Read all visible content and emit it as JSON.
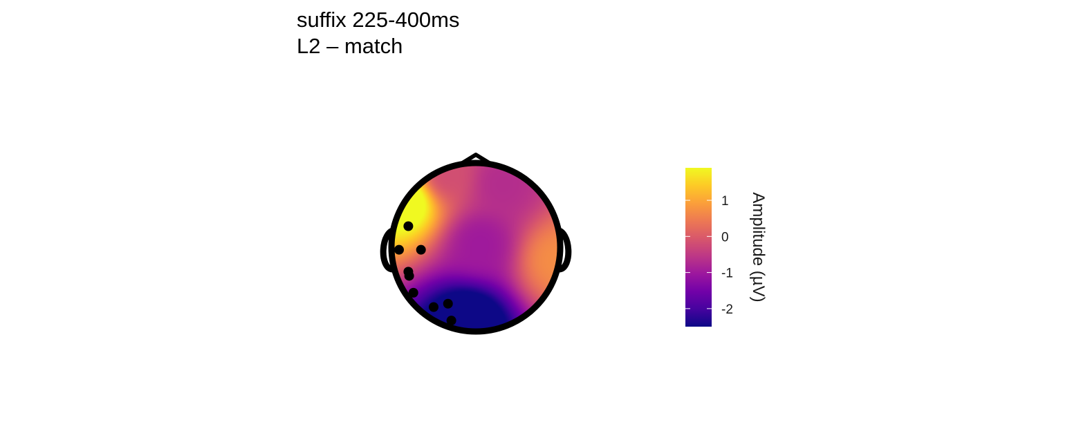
{
  "chart_data": {
    "type": "heatmap",
    "subtype": "topographic-scalp-map",
    "title_lines": [
      "suffix 225-400ms",
      "L2 – match"
    ],
    "colorbar": {
      "title": "Amplitude (µV)",
      "ticks": [
        1,
        0,
        -1,
        -2
      ],
      "tick_labels": [
        "1",
        "0",
        "-1",
        "-2"
      ],
      "range": [
        -2.5,
        1.9
      ],
      "colormap": [
        "#0d0887",
        "#46039f",
        "#7201a8",
        "#9c179e",
        "#bd3786",
        "#d8576b",
        "#ed7953",
        "#fb9f3a",
        "#fdca26",
        "#f0f921"
      ]
    },
    "amplitude_sources": [
      {
        "x": -0.82,
        "y": 0.55,
        "value": 2.4
      },
      {
        "x": 0.95,
        "y": -0.15,
        "value": 0.7
      },
      {
        "x": -0.1,
        "y": -0.9,
        "value": -3.2
      },
      {
        "x": 0.05,
        "y": 0.05,
        "value": -1.0
      },
      {
        "x": 0.3,
        "y": 0.75,
        "value": -0.7
      },
      {
        "x": -0.35,
        "y": 0.85,
        "value": -0.2
      }
    ],
    "amplitude_baseline": -0.6,
    "electrodes": [
      {
        "x": -0.8,
        "y": 0.25
      },
      {
        "x": -0.91,
        "y": -0.03
      },
      {
        "x": -0.65,
        "y": -0.03
      },
      {
        "x": -0.8,
        "y": -0.29
      },
      {
        "x": -0.79,
        "y": -0.34
      },
      {
        "x": -0.74,
        "y": -0.54
      },
      {
        "x": -0.5,
        "y": -0.71
      },
      {
        "x": -0.33,
        "y": -0.67
      },
      {
        "x": -0.29,
        "y": -0.87
      }
    ]
  }
}
